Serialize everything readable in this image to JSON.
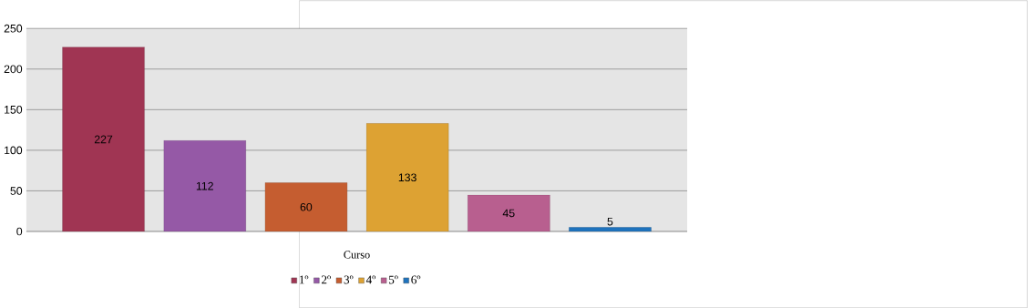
{
  "chart_data": {
    "type": "bar",
    "categories": [
      "Curso"
    ],
    "series": [
      {
        "name": "1º",
        "color": "#a03553",
        "values": [
          227
        ]
      },
      {
        "name": "2º",
        "color": "#9559a6",
        "values": [
          112
        ]
      },
      {
        "name": "3º",
        "color": "#c55d30",
        "values": [
          60
        ]
      },
      {
        "name": "4º",
        "color": "#dda233",
        "values": [
          133
        ]
      },
      {
        "name": "5º",
        "color": "#b85f8f",
        "values": [
          45
        ]
      },
      {
        "name": "6º",
        "color": "#1f73bd",
        "values": [
          5
        ]
      }
    ],
    "ylim": [
      0,
      250
    ],
    "yticks": [
      0,
      50,
      100,
      150,
      200,
      250
    ],
    "grid": "y",
    "legend": "bottom",
    "data_labels": true
  }
}
